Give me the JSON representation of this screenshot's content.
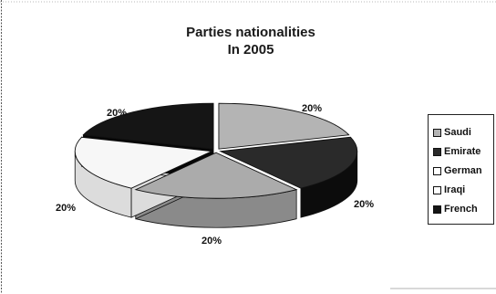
{
  "chart_data": {
    "type": "pie",
    "title_lines": [
      "Parties nationalities",
      "In  2005"
    ],
    "slices": [
      {
        "name": "Saudi",
        "value": 20,
        "label": "20%",
        "color": "#b4b4b4"
      },
      {
        "name": "Emirate",
        "value": 20,
        "label": "20%",
        "color": "#2a2a2a"
      },
      {
        "name": "German",
        "value": 20,
        "label": "20%",
        "color": "#ababab"
      },
      {
        "name": "Iraqi",
        "value": 20,
        "label": "20%",
        "color": "#f7f7f7"
      },
      {
        "name": "French",
        "value": 20,
        "label": "20%",
        "color": "#151515"
      }
    ],
    "legend": {
      "position": "right",
      "entries": [
        "Saudi",
        "Emirate",
        "German",
        "Iraqi",
        "French"
      ]
    },
    "style": "3d-pie"
  }
}
